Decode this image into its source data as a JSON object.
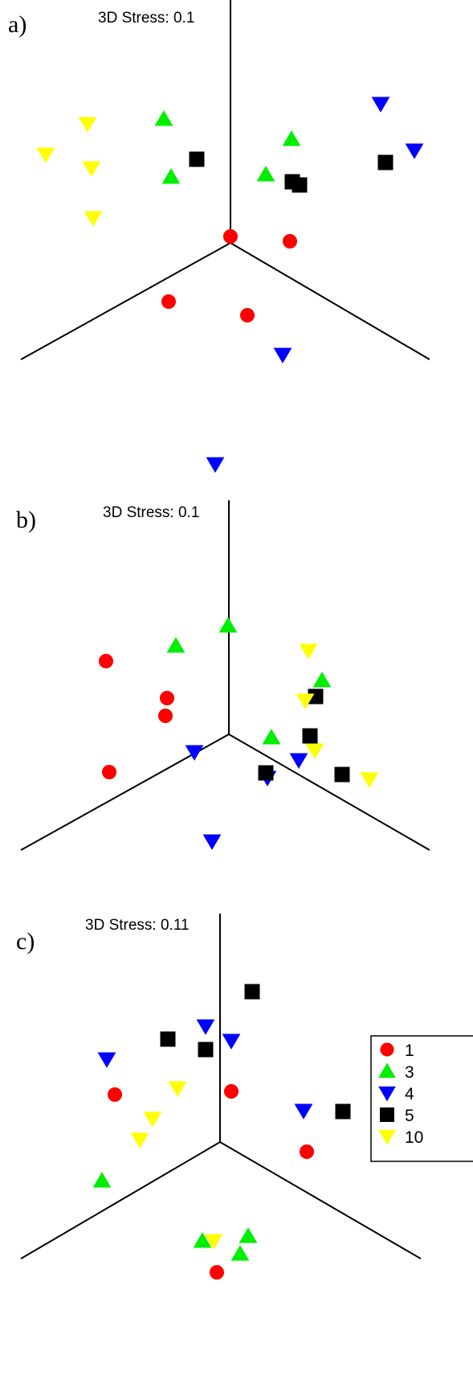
{
  "chart_data": [
    {
      "type": "scatter",
      "panel_label": "a)",
      "stress_label": "3D Stress: 0.1",
      "groups": {
        "1": [
          [
            287,
            294
          ],
          [
            361,
            300
          ],
          [
            210,
            375
          ],
          [
            308,
            392
          ]
        ],
        "3": [
          [
            204,
            148
          ],
          [
            363,
            173
          ],
          [
            213,
            220
          ],
          [
            331,
            217
          ]
        ],
        "4": [
          [
            474,
            129
          ],
          [
            516,
            187
          ],
          [
            352,
            441
          ],
          [
            268,
            577
          ]
        ],
        "5": [
          [
            245,
            198
          ],
          [
            364,
            226
          ],
          [
            373,
            230
          ],
          [
            480,
            202
          ]
        ],
        "10": [
          [
            109,
            154
          ],
          [
            57,
            192
          ],
          [
            114,
            209
          ],
          [
            116,
            271
          ]
        ]
      }
    },
    {
      "type": "scatter",
      "panel_label": "b)",
      "stress_label": "3D Stress: 0.1",
      "groups": {
        "1": [
          [
            132,
            822
          ],
          [
            208,
            868
          ],
          [
            206,
            890
          ],
          [
            136,
            960
          ]
        ],
        "3": [
          [
            284,
            778
          ],
          [
            219,
            803
          ],
          [
            401,
            846
          ],
          [
            338,
            917
          ]
        ],
        "4": [
          [
            242,
            935
          ],
          [
            372,
            945
          ],
          [
            333,
            967
          ],
          [
            264,
            1046
          ]
        ],
        "5": [
          [
            393,
            866
          ],
          [
            386,
            915
          ],
          [
            331,
            961
          ],
          [
            426,
            963
          ]
        ],
        "10": [
          [
            384,
            809
          ],
          [
            380,
            871
          ],
          [
            392,
            933
          ],
          [
            460,
            969
          ]
        ]
      }
    },
    {
      "type": "scatter",
      "panel_label": "c)",
      "stress_label": "3D Stress: 0.11",
      "groups": {
        "1": [
          [
            143,
            1361
          ],
          [
            288,
            1357
          ],
          [
            382,
            1432
          ],
          [
            270,
            1582
          ]
        ],
        "3": [
          [
            127,
            1468
          ],
          [
            309,
            1537
          ],
          [
            252,
            1543
          ],
          [
            299,
            1559
          ]
        ],
        "4": [
          [
            256,
            1276
          ],
          [
            288,
            1294
          ],
          [
            133,
            1317
          ],
          [
            378,
            1381
          ]
        ],
        "5": [
          [
            314,
            1233
          ],
          [
            209,
            1292
          ],
          [
            256,
            1305
          ],
          [
            427,
            1382
          ]
        ],
        "10": [
          [
            221,
            1353
          ],
          [
            190,
            1391
          ],
          [
            174,
            1417
          ],
          [
            266,
            1543
          ]
        ]
      },
      "legend": {
        "entries": [
          {
            "key": "1",
            "label": "1"
          },
          {
            "key": "3",
            "label": "3"
          },
          {
            "key": "4",
            "label": "4"
          },
          {
            "key": "5",
            "label": "5"
          },
          {
            "key": "10",
            "label": "10"
          }
        ]
      }
    }
  ],
  "styles": {
    "1": {
      "marker": "circle",
      "color": "#ff0000"
    },
    "3": {
      "marker": "triangle-up",
      "color": "#00ee00"
    },
    "4": {
      "marker": "triangle-down",
      "color": "#0000ff"
    },
    "5": {
      "marker": "square",
      "color": "#000000"
    },
    "10": {
      "marker": "triangle-down",
      "color": "#ffff00"
    }
  }
}
